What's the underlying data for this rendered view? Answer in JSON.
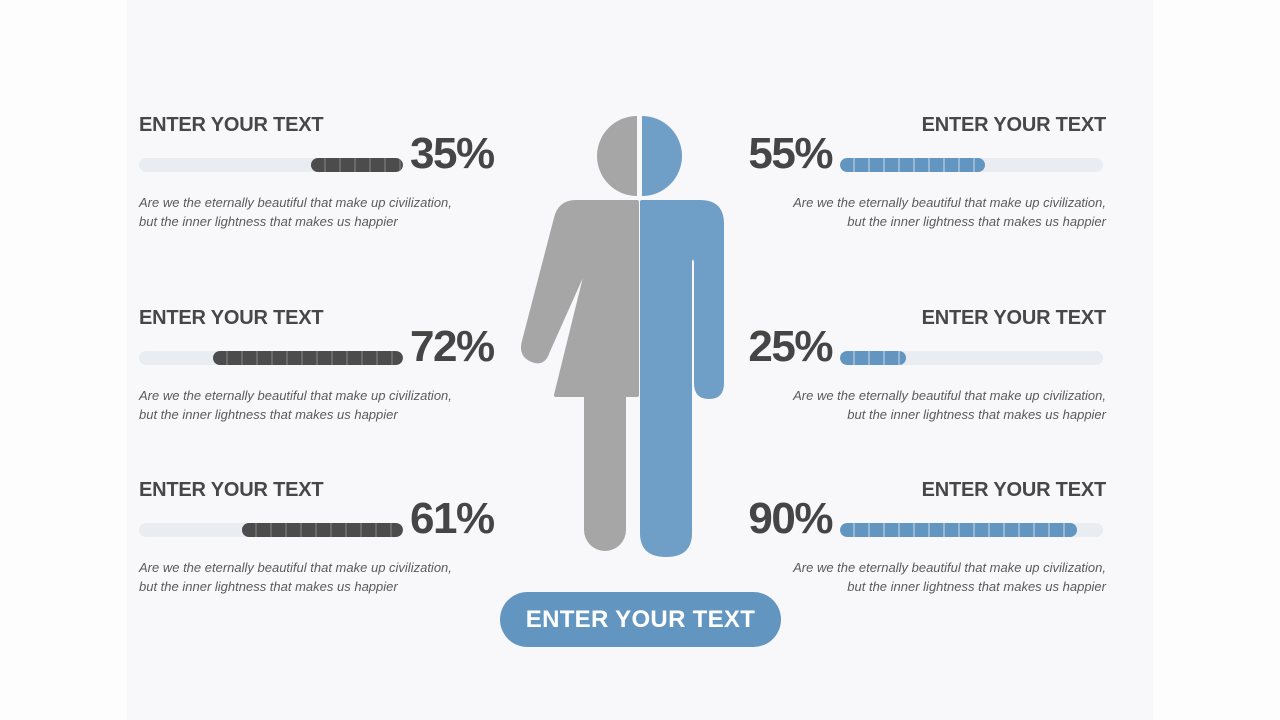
{
  "colors": {
    "background": "#f8f8fa",
    "page_margin": "#fdfdfe",
    "accent_blue": "#6296c0",
    "figure_blue": "#6f9ec6",
    "figure_gray": "#a6a6a6",
    "bar_dark": "#4c4c4c",
    "bar_track": "#e9edf1",
    "heading_text": "#474747",
    "percent_text": "#454545",
    "description_text": "#5a5a5a",
    "button_text": "#ffffff"
  },
  "stats": {
    "left": [
      {
        "heading": "ENTER YOUR TEXT",
        "percent": 35,
        "percent_label": "35%",
        "desc_line1": "Are we the eternally beautiful that make up civilization,",
        "desc_line2": "but the inner lightness that makes us happier"
      },
      {
        "heading": "ENTER YOUR TEXT",
        "percent": 72,
        "percent_label": "72%",
        "desc_line1": "Are we the eternally beautiful that make up civilization,",
        "desc_line2": "but the inner lightness that makes us happier"
      },
      {
        "heading": "ENTER YOUR TEXT",
        "percent": 61,
        "percent_label": "61%",
        "desc_line1": "Are we the eternally beautiful that make up civilization,",
        "desc_line2": "but the inner lightness that makes us happier"
      }
    ],
    "right": [
      {
        "heading": "ENTER YOUR TEXT",
        "percent": 55,
        "percent_label": "55%",
        "desc_line1": "Are we the eternally beautiful that make up civilization,",
        "desc_line2": "but the inner lightness that makes us happier"
      },
      {
        "heading": "ENTER YOUR TEXT",
        "percent": 25,
        "percent_label": "25%",
        "desc_line1": "Are we the eternally beautiful that make up civilization,",
        "desc_line2": "but the inner lightness that makes us happier"
      },
      {
        "heading": "ENTER YOUR TEXT",
        "percent": 90,
        "percent_label": "90%",
        "desc_line1": "Are we the eternally beautiful that make up civilization,",
        "desc_line2": "but the inner lightness that makes us happier"
      }
    ]
  },
  "button": {
    "label": "ENTER YOUR TEXT"
  }
}
